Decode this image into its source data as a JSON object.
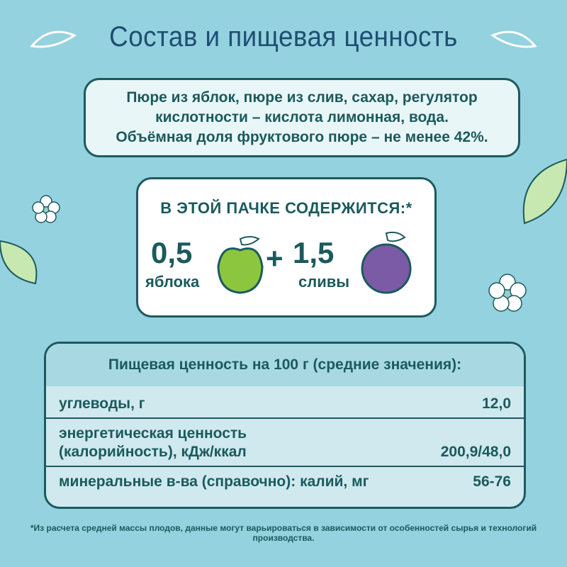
{
  "title": "Состав и пищевая ценность",
  "ingredients": {
    "line1": "Пюре из яблок, пюре из слив, сахар, регулятор",
    "line2": "кислотности – кислота лимонная, вода.",
    "line3": "Объёмная доля фруктового пюре – не менее 42%."
  },
  "pack": {
    "header": "В ЭТОЙ ПАЧКЕ СОДЕРЖИТСЯ:*",
    "apple_amount": "0,5",
    "apple_label": "яблока",
    "plus": "+",
    "plum_amount": "1,5",
    "plum_label": "сливы",
    "apple_color": "#8cc63f",
    "plum_color": "#7b5aa6"
  },
  "nutrition": {
    "header": "Пищевая ценность на 100 г (средние значения):",
    "rows": [
      {
        "label": "углеводы, г",
        "value": "12,0"
      },
      {
        "label1": "энергетическая ценность",
        "label2": "(калорийность), кДж/ккал",
        "value": "200,9/48,0"
      },
      {
        "label": "минеральные в-ва (справочно): калий, мг",
        "value": "56-76"
      }
    ]
  },
  "footnote": "*Из расчета средней массы плодов, данные могут варьироваться в зависимости от особенностей сырья и технологий производства.",
  "colors": {
    "background": "#93d2de",
    "text": "#1b5a5c",
    "title": "#1f4d72"
  }
}
